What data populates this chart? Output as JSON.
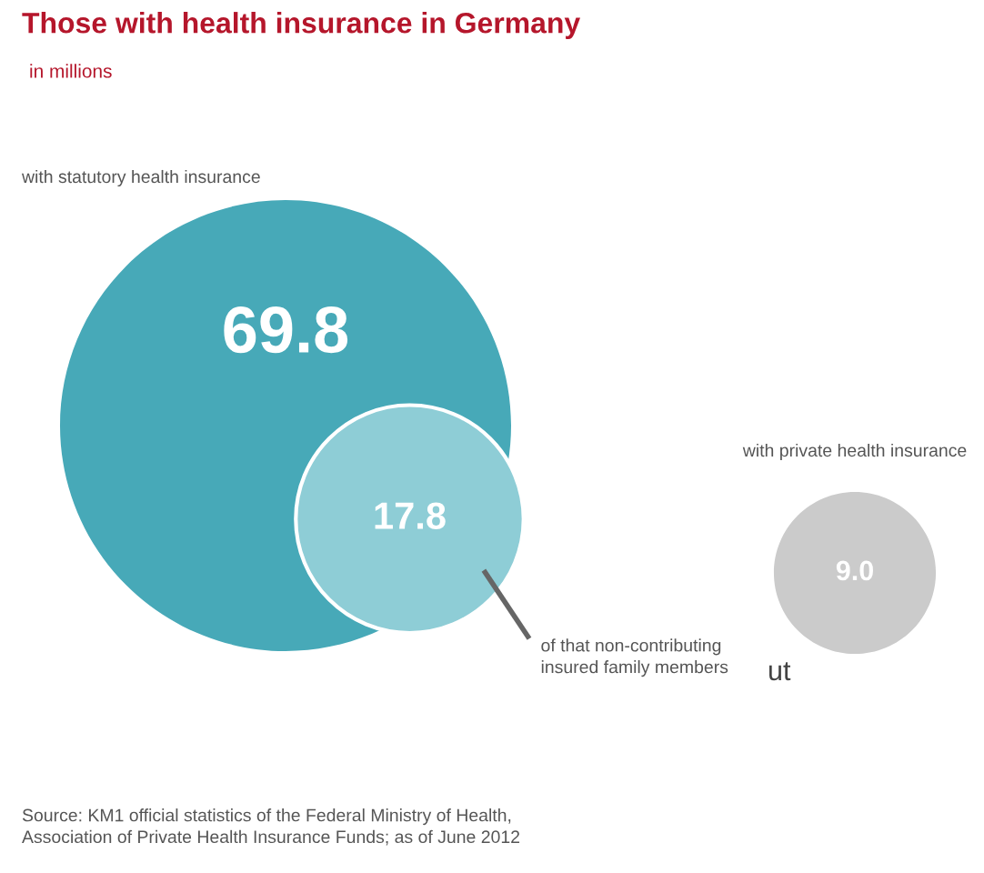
{
  "chart_data": {
    "type": "other",
    "title": "Those with health insurance in Germany",
    "subtitle": "in millions",
    "categories": [
      "with statutory health insurance",
      "of that non-contributing\ninsured family members",
      "with private health insurance"
    ],
    "values": [
      69.8,
      17.8,
      9.0
    ],
    "colors": [
      "#47a9b8",
      "#8ecdd6",
      "#cbcbcb"
    ],
    "value_labels": [
      "69.8",
      "17.8",
      "9.0"
    ],
    "annotations": [
      "ut",
      "Source: KM1 official statistics of the Federal Ministry of Health,\nAssociation of Private Health Insurance Funds; as of June 2012"
    ]
  }
}
